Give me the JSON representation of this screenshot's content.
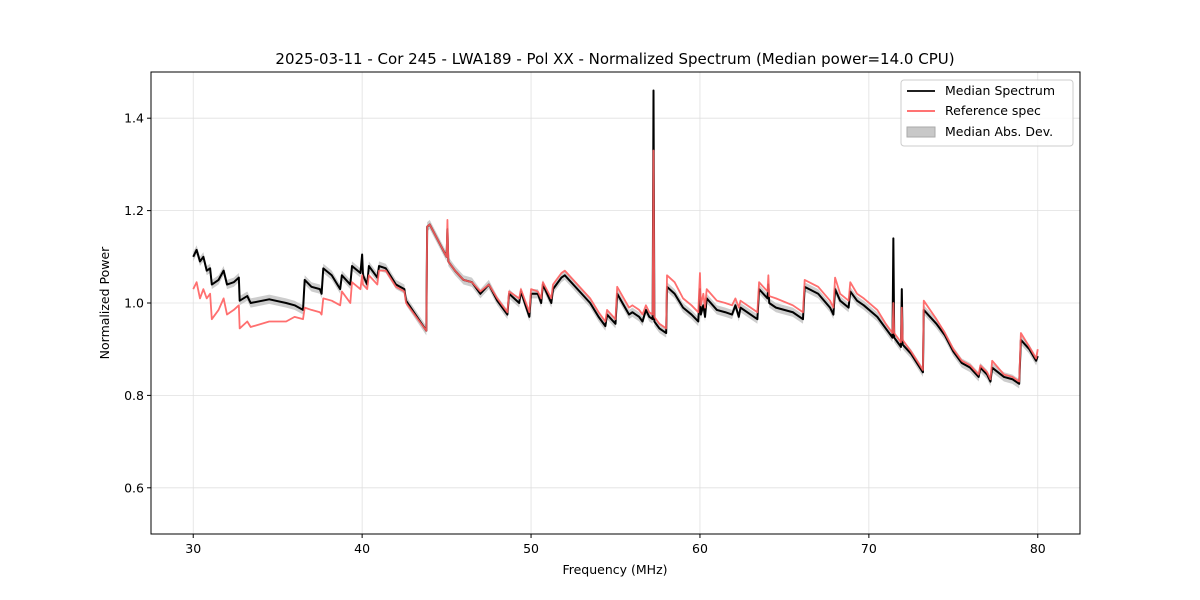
{
  "chart_data": {
    "type": "line",
    "title": "2025-03-11 - Cor 245 - LWA189 - Pol XX - Normalized Spectrum (Median power=14.0 CPU)",
    "xlabel": "Frequency (MHz)",
    "ylabel": "Normalized Power",
    "xlim": [
      27.5,
      82.5
    ],
    "ylim": [
      0.5,
      1.5
    ],
    "xticks": [
      30,
      40,
      50,
      60,
      70,
      80
    ],
    "yticks": [
      0.6,
      0.8,
      1.0,
      1.2,
      1.4
    ],
    "xtick_labels": [
      "30",
      "40",
      "50",
      "60",
      "70",
      "80"
    ],
    "ytick_labels": [
      "0.6",
      "0.8",
      "1.0",
      "1.2",
      "1.4"
    ],
    "grid": true,
    "legend_position": "top-right",
    "legend": [
      "Median Spectrum",
      "Reference spec",
      "Median Abs. Dev."
    ],
    "colors": {
      "median": "#000000",
      "reference": "#ff5f5f",
      "mad": "#c8c8c8"
    },
    "mad_halfwidth": 0.01,
    "x": [
      30.0,
      30.2,
      30.4,
      30.6,
      30.8,
      31.0,
      31.1,
      31.5,
      31.8,
      32.0,
      32.4,
      32.7,
      32.75,
      33.2,
      33.4,
      34.5,
      35.5,
      36.0,
      36.5,
      36.6,
      37.0,
      37.5,
      37.6,
      37.7,
      38.2,
      38.7,
      38.8,
      39.3,
      39.4,
      39.9,
      40.0,
      40.05,
      40.3,
      40.4,
      40.9,
      41.0,
      41.4,
      42.0,
      42.5,
      42.6,
      43.8,
      43.85,
      44.0,
      45.0,
      45.05,
      45.1,
      45.5,
      46.0,
      46.5,
      47.0,
      47.5,
      48.0,
      48.6,
      48.7,
      49.3,
      49.4,
      49.9,
      50.0,
      50.4,
      50.6,
      50.7,
      51.2,
      51.3,
      51.8,
      52.0,
      53.0,
      53.5,
      54.0,
      54.4,
      54.5,
      55.0,
      55.1,
      55.8,
      56.0,
      56.4,
      56.6,
      56.8,
      57.0,
      57.2,
      57.25,
      57.3,
      57.6,
      58.0,
      58.05,
      58.5,
      59.0,
      59.5,
      59.9,
      60.0,
      60.05,
      60.2,
      60.3,
      60.4,
      61.0,
      61.5,
      61.9,
      62.1,
      62.3,
      62.4,
      63.0,
      63.4,
      63.5,
      64.0,
      64.05,
      64.1,
      64.5,
      65.5,
      66.1,
      66.2,
      67.0,
      67.7,
      67.9,
      68.0,
      68.3,
      68.8,
      68.9,
      69.3,
      69.7,
      70.5,
      71.0,
      71.4,
      71.45,
      71.5,
      71.9,
      71.95,
      72.0,
      72.5,
      73.2,
      73.25,
      74.0,
      74.5,
      75.0,
      75.5,
      76.0,
      76.5,
      76.6,
      77.0,
      77.2,
      77.3,
      78.0,
      78.5,
      78.9,
      79.0,
      79.5,
      79.9,
      80.0
    ],
    "series": [
      {
        "name": "Median Spectrum",
        "values": [
          1.1,
          1.115,
          1.09,
          1.1,
          1.07,
          1.075,
          1.04,
          1.05,
          1.07,
          1.04,
          1.045,
          1.055,
          1.005,
          1.015,
          1.0,
          1.008,
          1.0,
          0.995,
          0.985,
          1.05,
          1.035,
          1.03,
          1.02,
          1.075,
          1.06,
          1.03,
          1.06,
          1.04,
          1.08,
          1.065,
          1.105,
          1.06,
          1.04,
          1.08,
          1.055,
          1.08,
          1.075,
          1.04,
          1.03,
          1.005,
          0.94,
          1.165,
          1.17,
          1.1,
          1.16,
          1.09,
          1.07,
          1.05,
          1.045,
          1.02,
          1.04,
          1.005,
          0.975,
          1.02,
          1.0,
          1.025,
          0.97,
          1.02,
          1.02,
          1.0,
          1.04,
          1.0,
          1.03,
          1.055,
          1.06,
          1.02,
          1.0,
          0.97,
          0.95,
          0.975,
          0.955,
          1.02,
          0.975,
          0.98,
          0.97,
          0.96,
          0.985,
          0.97,
          0.965,
          1.46,
          0.96,
          0.945,
          0.935,
          1.035,
          1.02,
          0.99,
          0.975,
          0.96,
          1.03,
          0.975,
          0.995,
          0.97,
          1.01,
          0.985,
          0.98,
          0.975,
          0.995,
          0.97,
          0.99,
          0.975,
          0.965,
          1.03,
          1.01,
          1.04,
          1.0,
          0.99,
          0.98,
          0.965,
          1.035,
          1.02,
          0.99,
          0.975,
          1.03,
          1.005,
          0.99,
          1.025,
          1.005,
          0.995,
          0.97,
          0.945,
          0.925,
          1.14,
          0.925,
          0.905,
          1.03,
          0.91,
          0.89,
          0.85,
          0.985,
          0.955,
          0.93,
          0.895,
          0.87,
          0.86,
          0.84,
          0.86,
          0.845,
          0.83,
          0.86,
          0.84,
          0.835,
          0.825,
          0.92,
          0.9,
          0.875,
          0.885
        ]
      },
      {
        "name": "Reference spec",
        "values": [
          1.03,
          1.045,
          1.01,
          1.03,
          1.01,
          1.02,
          0.965,
          0.985,
          1.01,
          0.975,
          0.985,
          0.995,
          0.945,
          0.96,
          0.948,
          0.96,
          0.96,
          0.97,
          0.965,
          0.99,
          0.985,
          0.98,
          0.975,
          1.01,
          1.005,
          0.995,
          1.025,
          1.0,
          1.045,
          1.03,
          1.06,
          1.04,
          1.03,
          1.06,
          1.04,
          1.07,
          1.07,
          1.035,
          1.025,
          1.0,
          0.94,
          1.165,
          1.17,
          1.1,
          1.18,
          1.09,
          1.07,
          1.05,
          1.045,
          1.025,
          1.04,
          1.01,
          0.98,
          1.025,
          1.01,
          1.03,
          0.98,
          1.03,
          1.025,
          1.01,
          1.045,
          1.01,
          1.04,
          1.065,
          1.07,
          1.03,
          1.01,
          0.98,
          0.96,
          0.985,
          0.965,
          1.035,
          0.99,
          0.995,
          0.985,
          0.975,
          0.995,
          0.98,
          0.975,
          1.33,
          0.97,
          0.955,
          0.945,
          1.06,
          1.045,
          1.01,
          0.995,
          0.98,
          1.065,
          0.995,
          1.02,
          0.99,
          1.03,
          1.005,
          1.0,
          0.995,
          1.01,
          0.99,
          1.005,
          0.99,
          0.98,
          1.045,
          1.025,
          1.06,
          1.015,
          1.01,
          0.995,
          0.98,
          1.05,
          1.035,
          1.005,
          0.99,
          1.055,
          1.02,
          1.005,
          1.045,
          1.02,
          1.01,
          0.985,
          0.955,
          0.935,
          1.0,
          0.935,
          0.915,
          0.99,
          0.92,
          0.895,
          0.855,
          1.005,
          0.965,
          0.935,
          0.9,
          0.875,
          0.865,
          0.845,
          0.865,
          0.85,
          0.835,
          0.875,
          0.845,
          0.84,
          0.83,
          0.935,
          0.905,
          0.88,
          0.9
        ]
      }
    ]
  }
}
